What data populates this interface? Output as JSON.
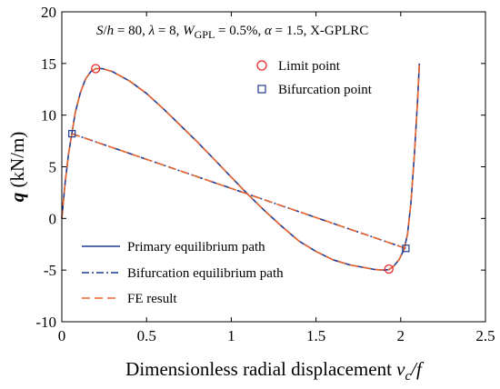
{
  "chart_data": {
    "type": "line",
    "annotation": {
      "parts": [
        {
          "t": "S",
          "i": true
        },
        {
          "t": "/"
        },
        {
          "t": "h",
          "i": true
        },
        {
          "t": " = 80, "
        },
        {
          "t": "λ",
          "i": true
        },
        {
          "t": " = 8, "
        },
        {
          "t": "W",
          "i": true
        },
        {
          "t": "GPL",
          "sub": true
        },
        {
          "t": " = 0.5%, "
        },
        {
          "t": "α",
          "i": true
        },
        {
          "t": " = 1.5, X-GPLRC"
        }
      ]
    },
    "xlabel": {
      "text": "Dimensionless radial displacement ",
      "var": "v",
      "sub": "c",
      "suffix": "/f"
    },
    "ylabel": {
      "var": "q",
      "unit": " (kN/m)"
    },
    "xlim": [
      0,
      2.5
    ],
    "ylim": [
      -10,
      20
    ],
    "xticks": [
      "0",
      "0.5",
      "1",
      "1.5",
      "2",
      "2.5"
    ],
    "yticks": [
      "-10",
      "-5",
      "0",
      "5",
      "10",
      "15",
      "20"
    ],
    "grid": false,
    "series": [
      {
        "name": "Primary equilibrium path",
        "color": "#1f3a93",
        "style": "solid",
        "x": [
          0,
          0.02,
          0.04,
          0.06,
          0.08,
          0.11,
          0.14,
          0.17,
          0.2,
          0.24,
          0.3,
          0.4,
          0.5,
          0.6,
          0.7,
          0.8,
          0.9,
          1.0,
          1.1,
          1.2,
          1.3,
          1.4,
          1.5,
          1.6,
          1.7,
          1.8,
          1.85,
          1.9,
          1.93,
          1.96,
          1.99,
          2.02,
          2.04,
          2.06,
          2.08,
          2.1,
          2.11
        ],
        "y": [
          0,
          3.5,
          6.3,
          8.3,
          10.3,
          12.2,
          13.5,
          14.2,
          14.5,
          14.5,
          14.2,
          13.3,
          12.1,
          10.6,
          9.0,
          7.4,
          5.7,
          4.0,
          2.3,
          0.7,
          -0.8,
          -2.2,
          -3.2,
          -4.0,
          -4.5,
          -4.8,
          -4.95,
          -5.0,
          -4.95,
          -4.6,
          -4.0,
          -3.0,
          -1.5,
          1.5,
          6.0,
          11.5,
          15.0
        ]
      },
      {
        "name": "Bifurcation equilibrium path",
        "color": "#1f3a93",
        "style": "dashdot",
        "x": [
          0.06,
          2.03
        ],
        "y": [
          8.2,
          -2.9
        ]
      },
      {
        "name": "FE result",
        "color": "#e8662c",
        "style": "dashed",
        "x": [
          0,
          0.02,
          0.04,
          0.06,
          0.08,
          0.11,
          0.14,
          0.17,
          0.2,
          0.24,
          0.3,
          0.4,
          0.5,
          0.6,
          0.7,
          0.8,
          0.9,
          1.0,
          1.1,
          1.2,
          1.3,
          1.4,
          1.5,
          1.6,
          1.7,
          1.8,
          1.85,
          1.9,
          1.93,
          1.96,
          1.99,
          2.02,
          2.04,
          2.06,
          2.08,
          2.1,
          2.11
        ],
        "y": [
          0,
          3.5,
          6.3,
          8.3,
          10.3,
          12.2,
          13.5,
          14.2,
          14.5,
          14.5,
          14.2,
          13.3,
          12.1,
          10.6,
          9.0,
          7.4,
          5.7,
          4.0,
          2.3,
          0.7,
          -0.8,
          -2.2,
          -3.2,
          -4.0,
          -4.5,
          -4.8,
          -4.95,
          -5.0,
          -4.95,
          -4.6,
          -4.0,
          -3.0,
          -1.5,
          1.5,
          6.0,
          11.5,
          15.0
        ],
        "branch": {
          "x": [
            0.06,
            2.03
          ],
          "y": [
            8.2,
            -2.9
          ]
        }
      }
    ],
    "markers": [
      {
        "name": "Limit point",
        "shape": "circle",
        "color": "#e8252a",
        "points": [
          {
            "x": 0.2,
            "y": 14.5
          },
          {
            "x": 1.93,
            "y": -4.9
          }
        ]
      },
      {
        "name": "Bifurcation point",
        "shape": "square",
        "color": "#1f3a93",
        "points": [
          {
            "x": 0.06,
            "y": 8.2
          },
          {
            "x": 2.03,
            "y": -2.9
          }
        ]
      }
    ],
    "legend_upper": "top-center",
    "legend_lower": "bottom-left"
  }
}
